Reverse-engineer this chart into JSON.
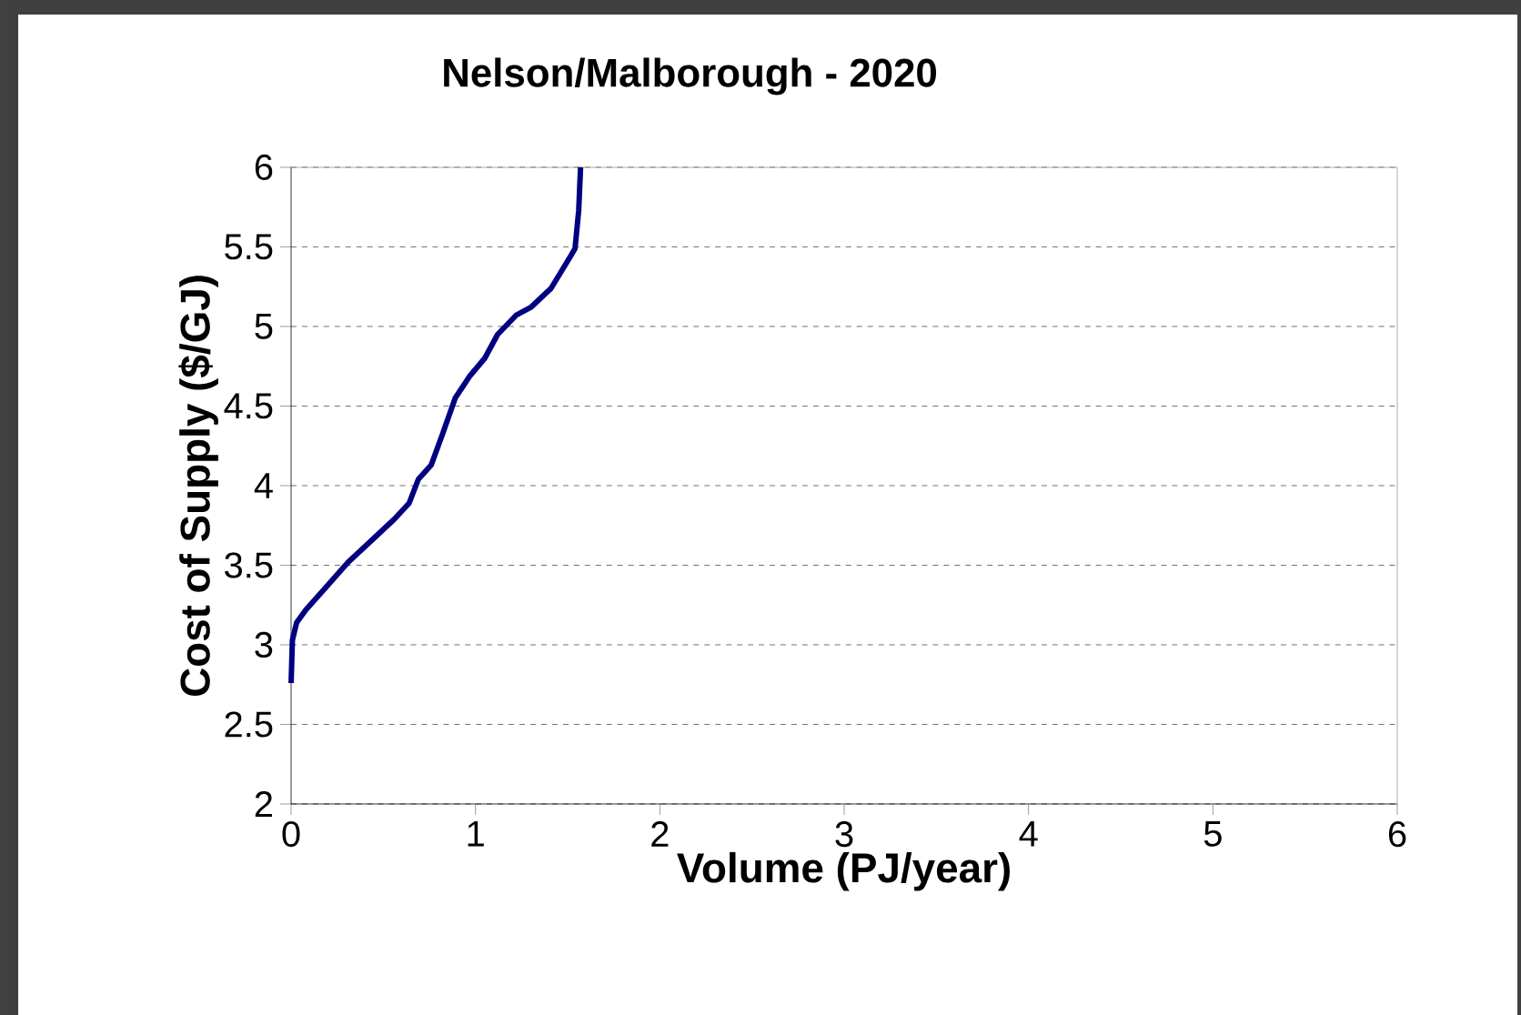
{
  "chart_data": {
    "type": "line",
    "title": "Nelson/Malborough - 2020",
    "xlabel": "Volume (PJ/year)",
    "ylabel": "Cost of Supply ($/GJ)",
    "x": [
      0,
      0.007,
      0.03,
      0.08,
      0.18,
      0.31,
      0.44,
      0.56,
      0.64,
      0.69,
      0.76,
      0.82,
      0.89,
      0.97,
      1.05,
      1.12,
      1.22,
      1.3,
      1.41,
      1.52,
      1.54,
      1.56,
      1.57
    ],
    "series": [
      {
        "color": "#000080",
        "values": [
          2.76,
          3.03,
          3.14,
          3.22,
          3.35,
          3.52,
          3.66,
          3.79,
          3.89,
          4.04,
          4.13,
          4.32,
          4.55,
          4.69,
          4.8,
          4.95,
          5.07,
          5.12,
          5.24,
          5.45,
          5.49,
          5.73,
          6.0
        ]
      }
    ],
    "xlim": [
      0,
      6
    ],
    "ylim": [
      2,
      6
    ],
    "xticks": [
      0,
      1,
      2,
      3,
      4,
      5,
      6
    ],
    "yticks": [
      2,
      2.5,
      3,
      3.5,
      4,
      4.5,
      5,
      5.5,
      6
    ],
    "grid": "y",
    "legend": false,
    "marker": "none",
    "line_style": "solid"
  }
}
